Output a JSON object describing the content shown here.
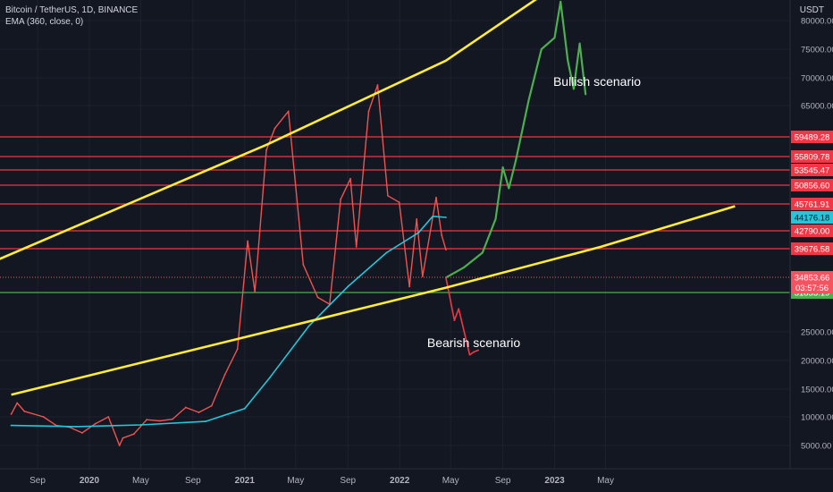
{
  "header": {
    "symbol_line": "Bitcoin / TetherUS, 1D, BINANCE",
    "indicator_line": "EMA (360, close, 0)",
    "currency": "USDT"
  },
  "chart_data": {
    "type": "line",
    "title": "Bitcoin / TetherUS, 1D, BINANCE",
    "xlabel": "",
    "ylabel": "",
    "ylim": [
      0,
      86000
    ],
    "x_ticks": [
      "Sep",
      "2020",
      "May",
      "Sep",
      "2021",
      "May",
      "Sep",
      "2022",
      "May",
      "Sep",
      "2023",
      "May"
    ],
    "y_ticks": [
      "80000.00",
      "75000.00",
      "70000.00",
      "65000.00",
      "25000.00",
      "20000.00",
      "15000.00",
      "10000.00",
      "5000.00"
    ],
    "series": [
      {
        "name": "",
        "color": "#ef5350",
        "x": [
          "2019-07-01",
          "2019-07-15",
          "2019-08-01",
          "2019-09-15",
          "2019-10-15",
          "2019-11-15",
          "2019-12-15",
          "2020-01-15",
          "2020-02-15",
          "2020-03-12",
          "2020-03-20",
          "2020-04-15",
          "2020-05-15",
          "2020-06-15",
          "2020-07-15",
          "2020-08-15",
          "2020-09-15",
          "2020-10-15",
          "2020-11-15",
          "2020-12-15",
          "2021-01-08",
          "2021-01-25",
          "2021-02-21",
          "2021-03-13",
          "2021-04-14",
          "2021-05-19",
          "2021-06-22",
          "2021-07-20",
          "2021-08-15",
          "2021-09-07",
          "2021-09-21",
          "2021-10-20",
          "2021-11-10",
          "2021-12-04",
          "2021-12-31",
          "2022-01-24",
          "2022-02-10",
          "2022-02-24",
          "2022-03-28",
          "2022-04-10",
          "2022-04-20"
        ],
        "y": [
          10500,
          12500,
          11000,
          10000,
          8500,
          8200,
          7200,
          8800,
          10000,
          5000,
          6300,
          7000,
          9500,
          9300,
          9600,
          11700,
          10800,
          12000,
          17500,
          22000,
          41000,
          32000,
          57000,
          61000,
          64000,
          37000,
          31000,
          29800,
          47000,
          52000,
          40000,
          64000,
          68700,
          48000,
          46200,
          33000,
          44000,
          35000,
          47500,
          42000,
          39500
        ]
      },
      {
        "name": "",
        "color": "#26c6da",
        "x": [
          "2019-07-01",
          "2019-12-01",
          "2020-05-01",
          "2020-10-01",
          "2021-01-01",
          "2021-03-01",
          "2021-06-01",
          "2021-09-01",
          "2021-12-01",
          "2022-02-15",
          "2022-03-20",
          "2022-04-20"
        ],
        "y": [
          8500,
          8300,
          8600,
          9200,
          11500,
          17000,
          26000,
          33000,
          39000,
          42500,
          44300,
          44176
        ]
      },
      {
        "name": "",
        "color": "#4caf50",
        "x": [
          "2022-04-20",
          "2022-06-01",
          "2022-07-15",
          "2022-08-15",
          "2022-09-01",
          "2022-09-15",
          "2022-10-01",
          "2022-11-01",
          "2022-12-01",
          "2023-01-01",
          "2023-01-15",
          "2023-02-01",
          "2023-02-15",
          "2023-03-01",
          "2023-03-15"
        ],
        "y": [
          34800,
          36500,
          39000,
          44000,
          54000,
          50000,
          55000,
          66000,
          75000,
          77000,
          84000,
          73000,
          68000,
          76000,
          67000
        ]
      },
      {
        "name": "",
        "color": "#f23645",
        "x": [
          "2022-04-20",
          "2022-05-10",
          "2022-05-20",
          "2022-06-15",
          "2022-06-25",
          "2022-07-05"
        ],
        "y": [
          34800,
          27000,
          29000,
          21000,
          21500,
          21800
        ]
      },
      {
        "name": "",
        "color": "#ffeb3b",
        "x": [
          "2019-07-01",
          "2022-04-20",
          "2023-04-20",
          "2024-03-01"
        ],
        "y": [
          14000,
          32800,
          40000,
          45500
        ]
      },
      {
        "name": "",
        "color": "#ffeb3b",
        "x": [
          "2019-04-01",
          "2021-02-21",
          "2022-04-20",
          "2023-01-15"
        ],
        "y": [
          36000,
          58000,
          73000,
          88000
        ]
      }
    ],
    "horizontal_levels": [
      {
        "value": 59489.28,
        "label": "59489.28",
        "color": "#f23645"
      },
      {
        "value": 55809.78,
        "label": "55809.78",
        "color": "#f23645"
      },
      {
        "value": 53545.47,
        "label": "53545.47",
        "color": "#f23645"
      },
      {
        "value": 50856.6,
        "label": "50856.60",
        "color": "#f23645"
      },
      {
        "value": 45761.91,
        "label": "45761.91",
        "color": "#f23645"
      },
      {
        "value": 42790.0,
        "label": "42790.00",
        "color": "#f23645"
      },
      {
        "value": 39676.58,
        "label": "39676.58",
        "color": "#f23645"
      },
      {
        "value": 31833.19,
        "label": "31833.19",
        "color": "#4caf50"
      }
    ],
    "price_badges": [
      {
        "value": 44176.18,
        "label": "44176.18",
        "color": "#26c6da"
      },
      {
        "value": 34853.66,
        "label": "34853.66",
        "color": "#f7525f"
      }
    ],
    "countdown": "03:57:56",
    "annotations": [
      "Bullish scenario",
      "Bearish scenario"
    ],
    "grid": true,
    "legend": "top-left"
  }
}
